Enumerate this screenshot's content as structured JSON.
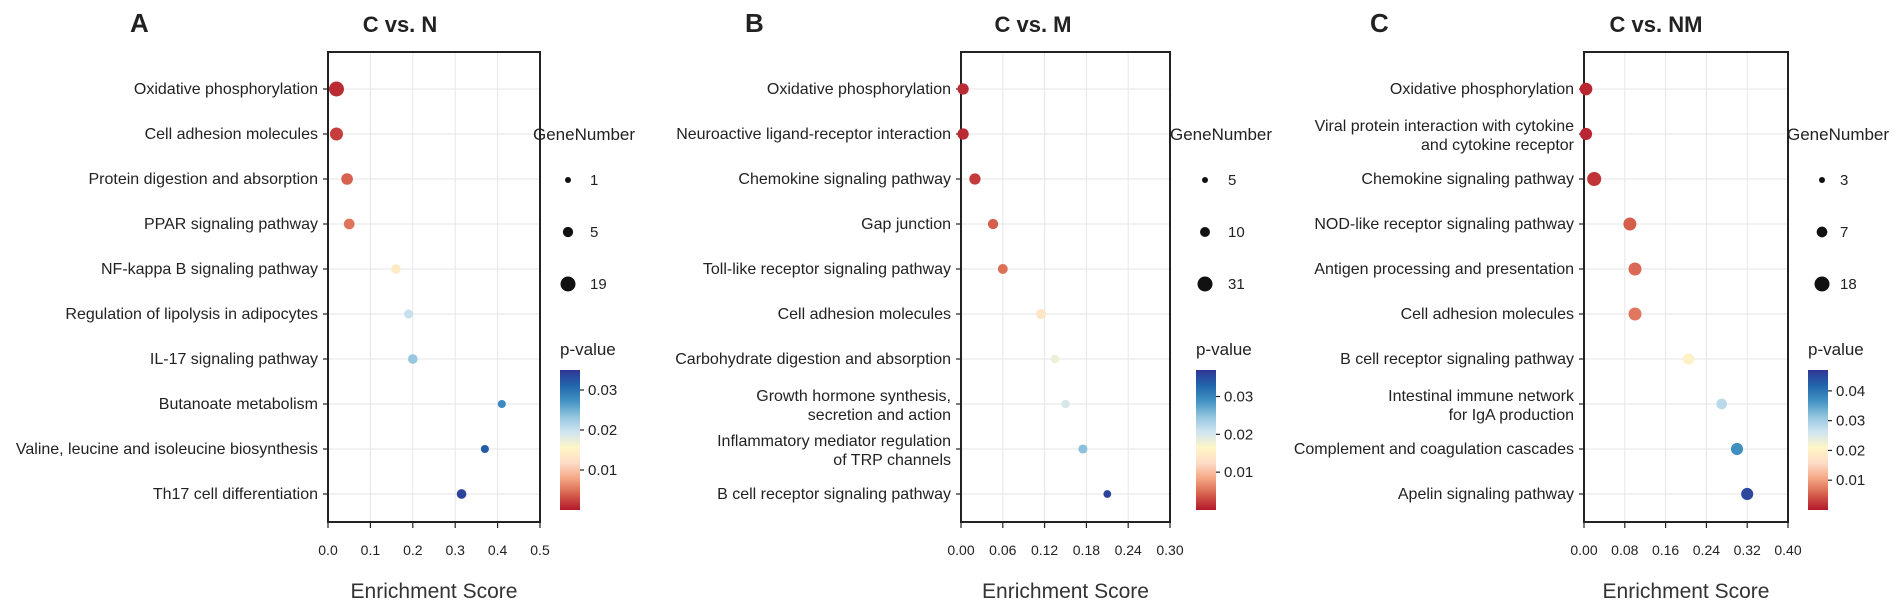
{
  "chart_data": [
    {
      "type": "scatter",
      "panel_label": "A",
      "title": "C vs. N",
      "xlabel": "Enrichment Score",
      "xlim": [
        0,
        0.5
      ],
      "xticks": [
        0.0,
        0.1,
        0.2,
        0.3,
        0.4,
        0.5
      ],
      "xtick_labels": [
        "0.0",
        "0.1",
        "0.2",
        "0.3",
        "0.4",
        "0.5"
      ],
      "size_legend_title": "GeneNumber",
      "size_legend": [
        1,
        5,
        19
      ],
      "color_legend_title": "p-value",
      "color_range": [
        0,
        0.035
      ],
      "color_ticks": [
        "0.01",
        "0.02",
        "0.03"
      ],
      "points": [
        {
          "term": "Oxidative phosphorylation",
          "x": 0.02,
          "genes": 19,
          "pvalue": 0.001
        },
        {
          "term": "Cell adhesion molecules",
          "x": 0.02,
          "genes": 12,
          "pvalue": 0.002
        },
        {
          "term": "Protein digestion and absorption",
          "x": 0.045,
          "genes": 8,
          "pvalue": 0.004
        },
        {
          "term": "PPAR signaling pathway",
          "x": 0.05,
          "genes": 6,
          "pvalue": 0.005
        },
        {
          "term": "NF-kappa B signaling pathway",
          "x": 0.16,
          "genes": 4,
          "pvalue": 0.014
        },
        {
          "term": "Regulation of lipolysis in adipocytes",
          "x": 0.19,
          "genes": 3,
          "pvalue": 0.02
        },
        {
          "term": "IL-17 signaling pathway",
          "x": 0.2,
          "genes": 4,
          "pvalue": 0.023
        },
        {
          "term": "Butanoate metabolism",
          "x": 0.41,
          "genes": 2,
          "pvalue": 0.028
        },
        {
          "term": "Valine, leucine and isoleucine biosynthesis",
          "x": 0.37,
          "genes": 2,
          "pvalue": 0.032
        },
        {
          "term": "Th17 cell differentiation",
          "x": 0.315,
          "genes": 4,
          "pvalue": 0.034
        }
      ]
    },
    {
      "type": "scatter",
      "panel_label": "B",
      "title": "C vs. M",
      "xlabel": "Enrichment Score",
      "xlim": [
        0,
        0.3
      ],
      "xticks": [
        0.0,
        0.06,
        0.12,
        0.18,
        0.24,
        0.3
      ],
      "xtick_labels": [
        "0.00",
        "0.06",
        "0.12",
        "0.18",
        "0.24",
        "0.30"
      ],
      "size_legend_title": "GeneNumber",
      "size_legend": [
        5,
        10,
        31
      ],
      "color_legend_title": "p-value",
      "color_range": [
        0,
        0.037
      ],
      "color_ticks": [
        "0.01",
        "0.02",
        "0.03"
      ],
      "points": [
        {
          "term": "Oxidative phosphorylation",
          "x": 0.003,
          "genes": 14,
          "pvalue": 0.001
        },
        {
          "term": "Neuroactive ligand-receptor interaction",
          "x": 0.003,
          "genes": 14,
          "pvalue": 0.001
        },
        {
          "term": "Chemokine signaling pathway",
          "x": 0.02,
          "genes": 14,
          "pvalue": 0.002
        },
        {
          "term": "Gap junction",
          "x": 0.046,
          "genes": 11,
          "pvalue": 0.004
        },
        {
          "term": "Toll-like receptor signaling pathway",
          "x": 0.06,
          "genes": 10,
          "pvalue": 0.005
        },
        {
          "term": "Cell adhesion molecules",
          "x": 0.115,
          "genes": 11,
          "pvalue": 0.014
        },
        {
          "term": "Carbohydrate digestion and absorption",
          "x": 0.135,
          "genes": 7,
          "pvalue": 0.018
        },
        {
          "term": "Growth hormone synthesis,\nsecretion and action",
          "x": 0.15,
          "genes": 7,
          "pvalue": 0.02
        },
        {
          "term": "Inflammatory mediator regulation\nof TRP channels",
          "x": 0.175,
          "genes": 8,
          "pvalue": 0.025
        },
        {
          "term": "B cell receptor signaling pathway",
          "x": 0.21,
          "genes": 6,
          "pvalue": 0.036
        }
      ]
    },
    {
      "type": "scatter",
      "panel_label": "C",
      "title": "C vs. NM",
      "xlabel": "Enrichment Score",
      "xlim": [
        0,
        0.4
      ],
      "xticks": [
        0.0,
        0.08,
        0.16,
        0.24,
        0.32,
        0.4
      ],
      "xtick_labels": [
        "0.00",
        "0.08",
        "0.16",
        "0.24",
        "0.32",
        "0.40"
      ],
      "size_legend_title": "GeneNumber",
      "size_legend": [
        3,
        7,
        18
      ],
      "color_legend_title": "p-value",
      "color_range": [
        0,
        0.047
      ],
      "color_ticks": [
        "0.01",
        "0.02",
        "0.03",
        "0.04"
      ],
      "points": [
        {
          "term": "Oxidative phosphorylation",
          "x": 0.004,
          "genes": 11,
          "pvalue": 0.001
        },
        {
          "term": "Viral protein interaction with cytokine\nand cytokine receptor",
          "x": 0.004,
          "genes": 10,
          "pvalue": 0.001
        },
        {
          "term": "Chemokine signaling pathway",
          "x": 0.02,
          "genes": 15,
          "pvalue": 0.002
        },
        {
          "term": "NOD-like receptor signaling pathway",
          "x": 0.09,
          "genes": 12,
          "pvalue": 0.005
        },
        {
          "term": "Antigen processing and presentation",
          "x": 0.1,
          "genes": 12,
          "pvalue": 0.006
        },
        {
          "term": "Cell adhesion molecules",
          "x": 0.1,
          "genes": 12,
          "pvalue": 0.007
        },
        {
          "term": "B cell receptor signaling pathway",
          "x": 0.205,
          "genes": 8,
          "pvalue": 0.02
        },
        {
          "term": "Intestinal immune network\nfor IgA production",
          "x": 0.27,
          "genes": 7,
          "pvalue": 0.028
        },
        {
          "term": "Complement and coagulation cascades",
          "x": 0.3,
          "genes": 10,
          "pvalue": 0.037
        },
        {
          "term": "Apelin signaling pathway",
          "x": 0.32,
          "genes": 10,
          "pvalue": 0.045
        }
      ]
    }
  ],
  "colors": {
    "colormap": [
      "#b2182b",
      "#d6604d",
      "#f4a582",
      "#fddbc7",
      "#fef6c6",
      "#d1e5f0",
      "#92c5de",
      "#4393c3",
      "#2166ac",
      "#313695"
    ],
    "frame": "#222222",
    "grid": "#e6e6e6"
  }
}
